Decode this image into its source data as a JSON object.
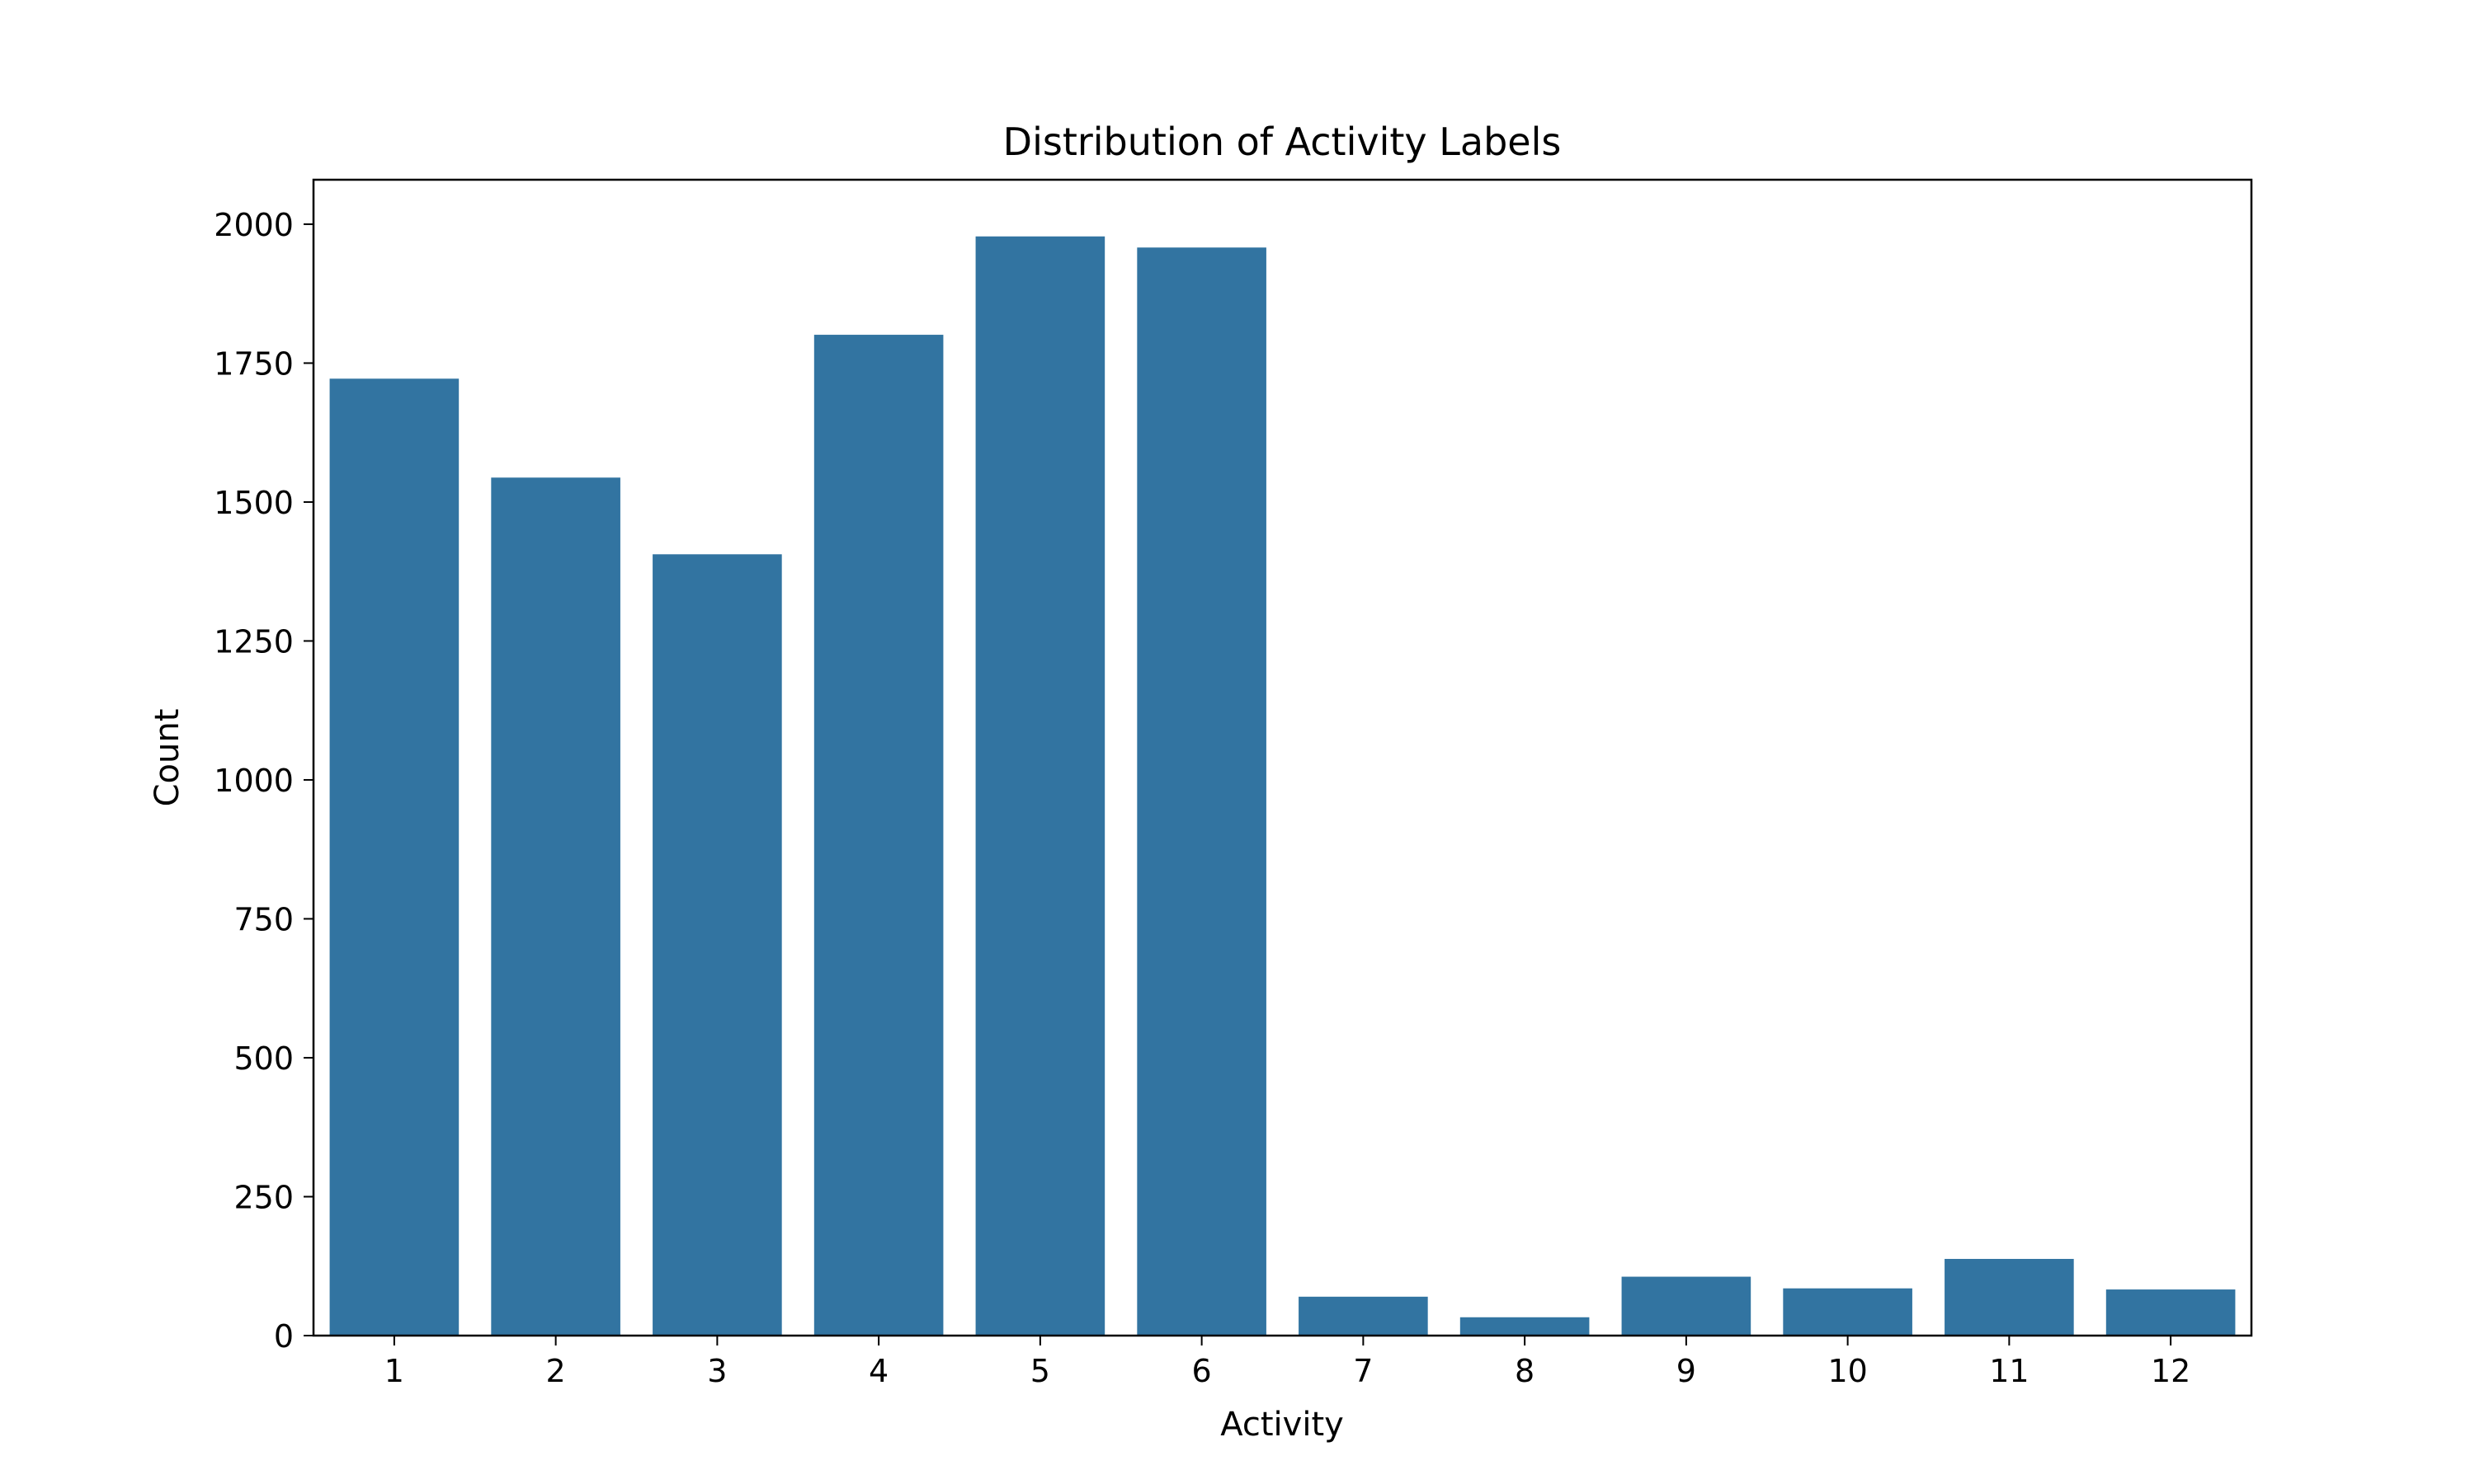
{
  "chart_data": {
    "type": "bar",
    "title": "Distribution of Activity Labels",
    "xlabel": "Activity",
    "ylabel": "Count",
    "categories": [
      "1",
      "2",
      "3",
      "4",
      "5",
      "6",
      "7",
      "8",
      "9",
      "10",
      "11",
      "12"
    ],
    "values": [
      1722,
      1544,
      1406,
      1801,
      1978,
      1958,
      70,
      33,
      106,
      85,
      138,
      83
    ],
    "ylim": [
      0,
      2080
    ],
    "yticks": [
      0,
      250,
      500,
      750,
      1000,
      1250,
      1500,
      1750,
      2000
    ],
    "ytick_labels": [
      "0",
      "250",
      "500",
      "750",
      "1000",
      "1250",
      "1500",
      "1750",
      "2000"
    ],
    "grid": false,
    "legend": "none",
    "bar_color": "#3274a1",
    "axis_color": "#000000"
  }
}
